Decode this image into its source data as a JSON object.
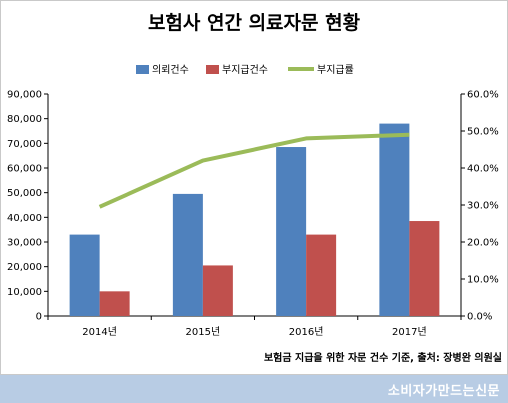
{
  "chart_data": {
    "type": "bar",
    "title": "보험사 연간 의료자문 현황",
    "categories": [
      "2014년",
      "2015년",
      "2016년",
      "2017년"
    ],
    "series": [
      {
        "name": "의뢰건수",
        "values": [
          33000,
          49500,
          68500,
          78000
        ],
        "color": "#4f81bd",
        "axis": "left",
        "kind": "bar"
      },
      {
        "name": "부지급건수",
        "values": [
          10000,
          20500,
          33000,
          38500
        ],
        "color": "#c0504d",
        "axis": "left",
        "kind": "bar"
      },
      {
        "name": "부지급률",
        "values": [
          29.5,
          42.0,
          48.0,
          49.0
        ],
        "color": "#9bbb59",
        "axis": "right",
        "kind": "line"
      }
    ],
    "y_left": {
      "min": 0,
      "max": 90000,
      "ticks": [
        "0",
        "10,000",
        "20,000",
        "30,000",
        "40,000",
        "50,000",
        "60,000",
        "70,000",
        "80,000",
        "90,000"
      ]
    },
    "y_right": {
      "min": 0,
      "max": 60,
      "ticks": [
        "0.0%",
        "10.0%",
        "20.0%",
        "30.0%",
        "40.0%",
        "50.0%",
        "60.0%"
      ]
    },
    "legend_position": "top",
    "grid": false,
    "note": "보험금 지급을 위한 자문 건수 기준, 출처: 장병완 의원실"
  },
  "footer": {
    "watermark": "소비자가만드는신문",
    "band_color": "#b8cce4"
  }
}
